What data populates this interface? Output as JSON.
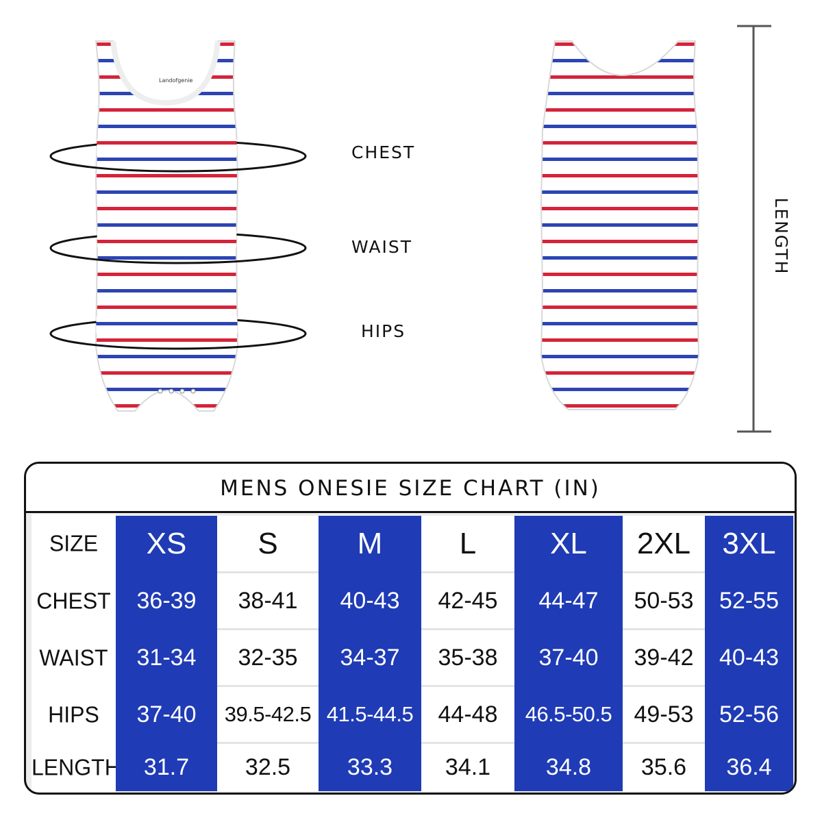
{
  "labels": {
    "chest": "CHEST",
    "waist": "WAIST",
    "hips": "HIPS",
    "length": "LENGTH"
  },
  "garment": {
    "stripe_colors": [
      "#d4243a",
      "#2c44b4"
    ],
    "tag_text": "Landofgenie"
  },
  "table": {
    "title": "MENS ONESIE SIZE CHART (IN)",
    "highlight_color": "#1f3bb5",
    "header": {
      "label": "SIZE",
      "sizes": [
        "XS",
        "S",
        "M",
        "L",
        "XL",
        "2XL",
        "3XL"
      ]
    },
    "rows": [
      {
        "label": "CHEST",
        "values": [
          "36-39",
          "38-41",
          "40-43",
          "42-45",
          "44-47",
          "50-53",
          "52-55"
        ]
      },
      {
        "label": "WAIST",
        "values": [
          "31-34",
          "32-35",
          "34-37",
          "35-38",
          "37-40",
          "39-42",
          "40-43"
        ]
      },
      {
        "label": "HIPS",
        "values": [
          "37-40",
          "39.5-42.5",
          "41.5-44.5",
          "44-48",
          "46.5-50.5",
          "49-53",
          "52-56"
        ]
      },
      {
        "label": "LENGTH",
        "values": [
          "31.7",
          "32.5",
          "33.3",
          "34.1",
          "34.8",
          "35.6",
          "36.4"
        ]
      }
    ]
  }
}
